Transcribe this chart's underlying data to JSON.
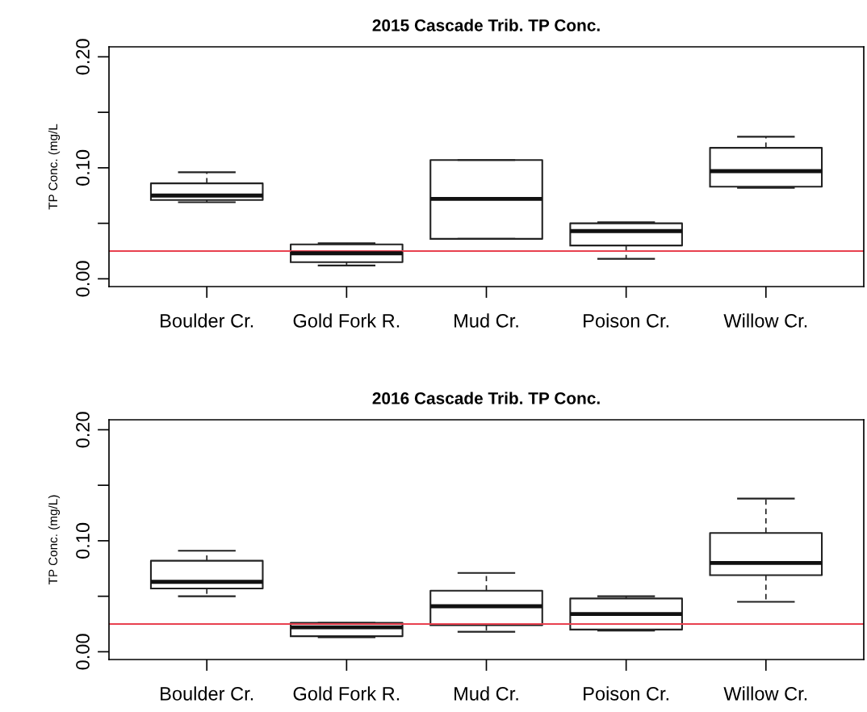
{
  "chart_data": [
    {
      "type": "box",
      "title": "2015 Cascade Trib. TP Conc.",
      "ylabel": "TP Conc. (mg/L",
      "categories": [
        "Boulder Cr.",
        "Gold Fork R.",
        "Mud Cr.",
        "Poison Cr.",
        "Willow Cr."
      ],
      "boxes": [
        {
          "low": 0.069,
          "q1": 0.071,
          "median": 0.075,
          "q3": 0.086,
          "high": 0.096
        },
        {
          "low": 0.012,
          "q1": 0.015,
          "median": 0.023,
          "q3": 0.031,
          "high": 0.032
        },
        {
          "low": 0.036,
          "q1": 0.036,
          "median": 0.072,
          "q3": 0.107,
          "high": 0.107
        },
        {
          "low": 0.018,
          "q1": 0.03,
          "median": 0.043,
          "q3": 0.05,
          "high": 0.051
        },
        {
          "low": 0.082,
          "q1": 0.083,
          "median": 0.097,
          "q3": 0.118,
          "high": 0.128
        }
      ],
      "ylim": [
        -0.007,
        0.209
      ],
      "yticks": [
        {
          "value": 0,
          "label": "0.00"
        },
        {
          "value": 0.05,
          "label": null
        },
        {
          "value": 0.1,
          "label": "0.10"
        },
        {
          "value": 0.15,
          "label": null
        },
        {
          "value": 0.2,
          "label": "0.20"
        }
      ],
      "ref_lines": [
        {
          "axis": "y",
          "value": 0.025,
          "color": "#e8404f"
        }
      ]
    },
    {
      "type": "box",
      "title": "2016 Cascade Trib. TP Conc.",
      "ylabel": "TP Conc. (mg/L)",
      "categories": [
        "Boulder Cr.",
        "Gold Fork R.",
        "Mud Cr.",
        "Poison Cr.",
        "Willow Cr."
      ],
      "boxes": [
        {
          "low": 0.05,
          "q1": 0.057,
          "median": 0.063,
          "q3": 0.082,
          "high": 0.091
        },
        {
          "low": 0.013,
          "q1": 0.014,
          "median": 0.022,
          "q3": 0.026,
          "high": 0.026
        },
        {
          "low": 0.018,
          "q1": 0.024,
          "median": 0.041,
          "q3": 0.055,
          "high": 0.071
        },
        {
          "low": 0.019,
          "q1": 0.02,
          "median": 0.034,
          "q3": 0.048,
          "high": 0.05
        },
        {
          "low": 0.045,
          "q1": 0.069,
          "median": 0.08,
          "q3": 0.107,
          "high": 0.138
        }
      ],
      "ylim": [
        -0.007,
        0.209
      ],
      "yticks": [
        {
          "value": 0,
          "label": "0.00"
        },
        {
          "value": 0.05,
          "label": null
        },
        {
          "value": 0.1,
          "label": "0.10"
        },
        {
          "value": 0.15,
          "label": null
        },
        {
          "value": 0.2,
          "label": "0.20"
        }
      ],
      "ref_lines": [
        {
          "axis": "y",
          "value": 0.025,
          "color": "#e8404f"
        }
      ]
    }
  ]
}
